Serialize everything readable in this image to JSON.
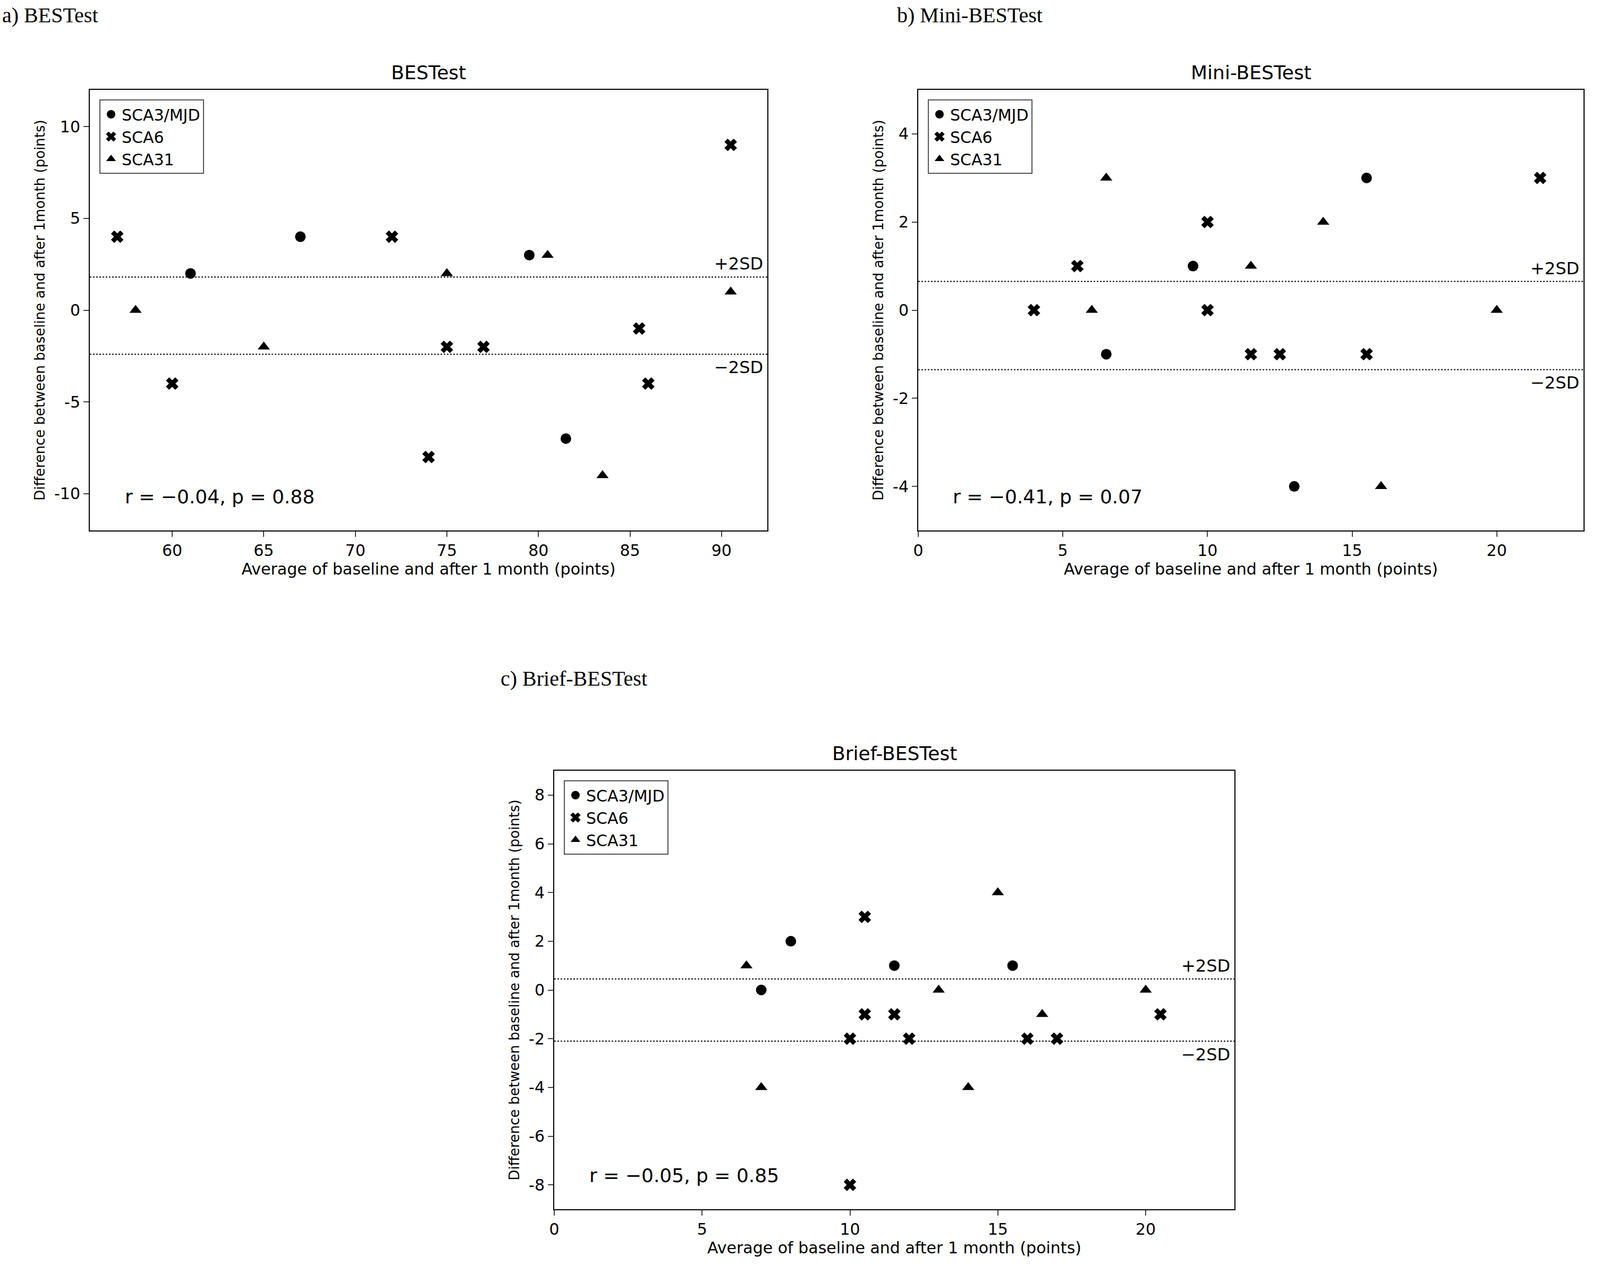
{
  "chart_data": [
    {
      "type": "scatter",
      "subtitle": "a) BESTest",
      "title": "BESTest",
      "x_label": "Average of baseline and after 1 month (points)",
      "y_label": "Difference between baseline and after 1month (points)",
      "xlim": [
        55.5,
        92.5
      ],
      "xticks": [
        60,
        65,
        70,
        75,
        80,
        85,
        90
      ],
      "ylim": [
        -12,
        12
      ],
      "yticks": [
        -10,
        -5,
        0,
        5,
        10
      ],
      "grid": false,
      "legend": "upper left",
      "reference_lines": [
        {
          "value": 1.8,
          "label": "+2SD"
        },
        {
          "value": -2.4,
          "label": "−2SD"
        }
      ],
      "annotations": [
        "r = −0.04, p = 0.88"
      ],
      "series": [
        {
          "name": "SCA3/MJD",
          "color": "#000000",
          "marker": "circle",
          "x": [
            61,
            67,
            79.5,
            81.5
          ],
          "values": [
            2,
            4,
            3,
            -7
          ]
        },
        {
          "name": "SCA6",
          "color": "#000000",
          "marker": "x",
          "x": [
            57,
            60,
            72,
            74,
            75,
            77,
            85.5,
            86,
            90.5
          ],
          "values": [
            4,
            -4,
            4,
            -8,
            -2,
            -2,
            -1,
            -4,
            9
          ]
        },
        {
          "name": "SCA31",
          "color": "#000000",
          "marker": "triangle",
          "x": [
            58,
            65,
            75,
            80.5,
            83.5,
            90.5
          ],
          "values": [
            0,
            -2,
            2,
            3,
            -9,
            1
          ]
        }
      ]
    },
    {
      "type": "scatter",
      "subtitle": "b) Mini-BESTest",
      "title": "Mini-BESTest",
      "x_label": "Average of baseline and after 1 month (points)",
      "y_label": "Difference between baseline and after 1month (points)",
      "xlim": [
        0,
        23
      ],
      "xticks": [
        0,
        5,
        10,
        15,
        20
      ],
      "ylim": [
        -5,
        5
      ],
      "yticks": [
        -4,
        -2,
        0,
        2,
        4
      ],
      "grid": false,
      "legend": "upper left",
      "reference_lines": [
        {
          "value": 0.65,
          "label": "+2SD"
        },
        {
          "value": -1.35,
          "label": "−2SD"
        }
      ],
      "annotations": [
        "r = −0.41, p = 0.07"
      ],
      "series": [
        {
          "name": "SCA3/MJD",
          "color": "#000000",
          "marker": "circle",
          "x": [
            6.5,
            9.5,
            13,
            15.5
          ],
          "values": [
            -1,
            1,
            -4,
            3
          ]
        },
        {
          "name": "SCA6",
          "color": "#000000",
          "marker": "x",
          "x": [
            4,
            5.5,
            10,
            10,
            11.5,
            12.5,
            15.5,
            21.5
          ],
          "values": [
            0,
            1,
            2,
            0,
            -1,
            -1,
            -1,
            3
          ]
        },
        {
          "name": "SCA31",
          "color": "#000000",
          "marker": "triangle",
          "x": [
            6.5,
            6,
            11.5,
            14,
            16,
            20
          ],
          "values": [
            3,
            0,
            1,
            2,
            -4,
            0
          ]
        }
      ]
    },
    {
      "type": "scatter",
      "subtitle": "c) Brief-BESTest",
      "title": "Brief-BESTest",
      "x_label": "Average of baseline and after 1 month (points)",
      "y_label": "Difference between baseline and after 1month (points)",
      "xlim": [
        0,
        23
      ],
      "xticks": [
        0,
        5,
        10,
        15,
        20
      ],
      "ylim": [
        -9,
        9
      ],
      "yticks": [
        -8,
        -6,
        -4,
        -2,
        0,
        2,
        4,
        6,
        8
      ],
      "grid": false,
      "legend": "upper left",
      "reference_lines": [
        {
          "value": 0.45,
          "label": "+2SD"
        },
        {
          "value": -2.1,
          "label": "−2SD"
        }
      ],
      "annotations": [
        "r = −0.05, p = 0.85"
      ],
      "series": [
        {
          "name": "SCA3/MJD",
          "color": "#000000",
          "marker": "circle",
          "x": [
            7,
            8,
            11.5,
            15.5
          ],
          "values": [
            0,
            2,
            1,
            1
          ]
        },
        {
          "name": "SCA6",
          "color": "#000000",
          "marker": "x",
          "x": [
            10.5,
            10,
            10.5,
            11.5,
            12,
            16,
            17,
            20.5,
            10
          ],
          "values": [
            3,
            -2,
            -1,
            -1,
            -2,
            -2,
            -2,
            -1,
            -8
          ]
        },
        {
          "name": "SCA31",
          "color": "#000000",
          "marker": "triangle",
          "x": [
            6.5,
            7,
            13,
            15,
            14,
            16.5,
            20
          ],
          "values": [
            1,
            -4,
            0,
            4,
            -4,
            -1,
            0
          ]
        }
      ]
    }
  ]
}
